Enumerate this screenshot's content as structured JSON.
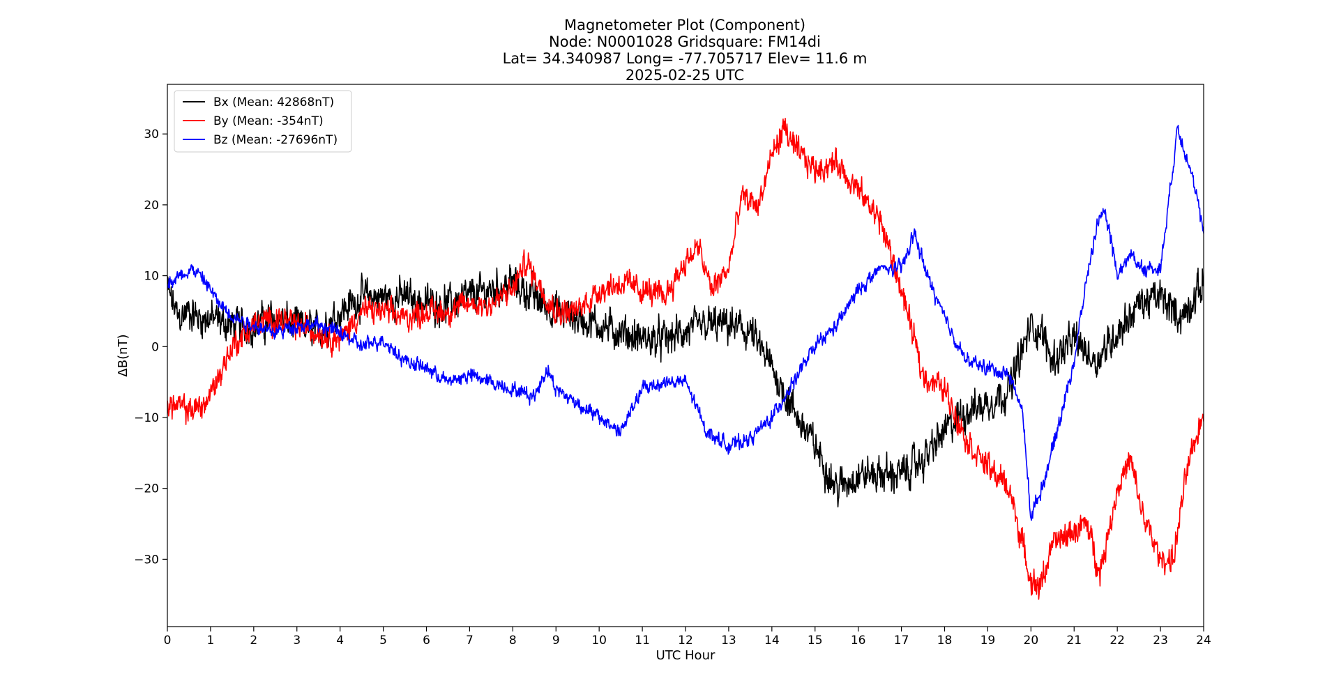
{
  "chart_data": {
    "type": "line",
    "title_lines": [
      "Magnetometer Plot (Component)",
      "Node:  N0001028     Gridsquare:  FM14di",
      "Lat= 34.340987    Long= -77.705717    Elev= 11.6 m",
      "2025-02-25  UTC"
    ],
    "xlabel": "UTC Hour",
    "ylabel": "ΔB(nT)",
    "xlim": [
      0,
      24
    ],
    "ylim": [
      -39.5,
      37
    ],
    "xticks": [
      0,
      1,
      2,
      3,
      4,
      5,
      6,
      7,
      8,
      9,
      10,
      11,
      12,
      13,
      14,
      15,
      16,
      17,
      18,
      19,
      20,
      21,
      22,
      23,
      24
    ],
    "yticks": [
      -30,
      -20,
      -10,
      0,
      10,
      20,
      30
    ],
    "grid": false,
    "legend_position": "top-left",
    "series": [
      {
        "name": "Bx (Mean: 42868nT)",
        "color": "#000000",
        "noise": 3.0,
        "x": [
          0,
          0.25,
          0.5,
          0.75,
          1,
          1.5,
          2,
          2.5,
          3,
          3.5,
          4,
          4.5,
          5,
          5.5,
          6,
          6.5,
          7,
          7.5,
          8,
          8.5,
          9,
          9.5,
          10,
          10.5,
          11,
          11.5,
          12,
          12.5,
          13,
          13.5,
          14,
          14.5,
          15,
          15.5,
          16,
          16.5,
          17,
          17.5,
          18,
          18.5,
          19,
          19.5,
          20,
          20.25,
          20.5,
          21,
          21.5,
          22,
          22.5,
          23,
          23.5,
          24
        ],
        "y": [
          8,
          4,
          5,
          4,
          4,
          3,
          3,
          4,
          3,
          2,
          5,
          7,
          7,
          7,
          6,
          6,
          7,
          8,
          9,
          7,
          5,
          4,
          3,
          2,
          1,
          1,
          2,
          3,
          3,
          2,
          -3,
          -9,
          -14,
          -20,
          -18,
          -18,
          -18,
          -16,
          -12,
          -9,
          -8,
          -6,
          3,
          2,
          -2,
          1,
          -2,
          2,
          6,
          7,
          4,
          9
        ]
      },
      {
        "name": "By (Mean: -354nT)",
        "color": "#ff0000",
        "noise": 2.2,
        "x": [
          0,
          0.5,
          0.9,
          1.2,
          1.5,
          2,
          2.5,
          3,
          3.5,
          4,
          4.5,
          5,
          5.5,
          6,
          6.5,
          7,
          7.5,
          8,
          8.3,
          8.7,
          9,
          9.5,
          10,
          10.5,
          11,
          11.5,
          12,
          12.3,
          12.6,
          13,
          13.3,
          13.7,
          14,
          14.3,
          14.5,
          15,
          15.5,
          16,
          16.5,
          17,
          17.5,
          18,
          18.5,
          19,
          19.5,
          20,
          20.2,
          20.5,
          21,
          21.3,
          21.6,
          22,
          22.3,
          22.6,
          23,
          23.3,
          23.6,
          24
        ],
        "y": [
          -8,
          -9,
          -8,
          -4,
          0,
          3,
          4,
          3,
          2,
          1,
          5,
          5,
          4,
          5,
          5,
          6,
          6,
          8,
          12,
          8,
          5,
          5,
          8,
          9,
          8,
          7,
          12,
          14,
          8,
          11,
          21,
          20,
          27,
          31,
          28,
          25,
          26,
          22,
          18,
          8,
          -4,
          -6,
          -13,
          -17,
          -20,
          -33,
          -34,
          -28,
          -26,
          -25,
          -32,
          -20,
          -16,
          -24,
          -30,
          -30,
          -18,
          -9
        ]
      },
      {
        "name": "Bz (Mean: -27696nT)",
        "color": "#0000ff",
        "noise": 1.2,
        "x": [
          0,
          0.3,
          0.6,
          0.9,
          1.2,
          1.6,
          2,
          2.5,
          3,
          3.5,
          4,
          4.5,
          5,
          5.5,
          6,
          6.5,
          7,
          7.5,
          8,
          8.5,
          8.8,
          9,
          9.5,
          10,
          10.5,
          11,
          11.5,
          12,
          12.5,
          13,
          13.5,
          14,
          14.5,
          15,
          15.5,
          16,
          16.5,
          17,
          17.3,
          17.6,
          18,
          18.5,
          19,
          19.5,
          19.8,
          20,
          20.3,
          20.6,
          21,
          21.3,
          21.6,
          21.8,
          22,
          22.3,
          22.6,
          23,
          23.4,
          23.7,
          24
        ],
        "y": [
          9,
          10,
          11,
          9,
          6,
          4,
          3,
          2,
          3,
          3,
          2,
          0,
          1,
          -2,
          -3,
          -5,
          -4,
          -5,
          -6,
          -7,
          -3,
          -6,
          -8,
          -10,
          -12,
          -6,
          -5,
          -5,
          -12,
          -14,
          -13,
          -10,
          -5,
          0,
          3,
          8,
          11,
          11,
          16,
          10,
          4,
          -2,
          -3,
          -4,
          -9,
          -24,
          -19,
          -12,
          -2,
          10,
          19,
          17,
          10,
          13,
          11,
          11,
          31,
          25,
          16
        ]
      }
    ]
  }
}
